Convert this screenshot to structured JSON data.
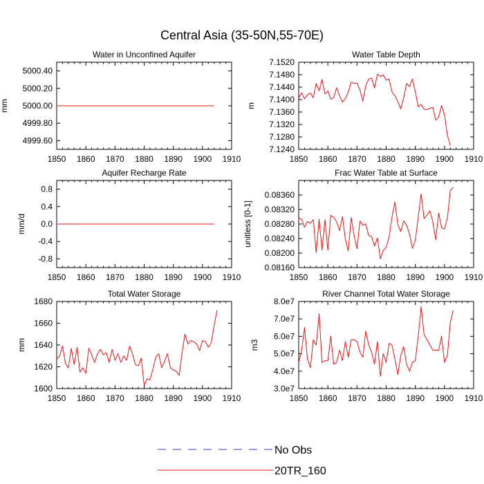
{
  "figure_title": "Central Asia (35-50N,55-70E)",
  "legend": [
    {
      "label": "No Obs",
      "color": "#3333cc",
      "dashed": true
    },
    {
      "label": "20TR_160",
      "color": "#ee1111",
      "dashed": false
    }
  ],
  "chart_data": [
    {
      "type": "line",
      "title": "Water in Unconfined Aquifer",
      "xlabel": "",
      "ylabel": "mm",
      "xlim": [
        1850,
        1910
      ],
      "ylim": [
        4999.5,
        5000.5
      ],
      "xticks": [
        "1850",
        "1860",
        "1870",
        "1880",
        "1890",
        "1900",
        "1910"
      ],
      "yticks": [
        "4999.60",
        "4999.80",
        "5000.00",
        "5000.20",
        "5000.40"
      ],
      "series": [
        {
          "color": "#ee1111",
          "x_start": 1850,
          "x_step": 1,
          "values": [
            5000,
            5000,
            5000,
            5000,
            5000,
            5000,
            5000,
            5000,
            5000,
            5000,
            5000,
            5000,
            5000,
            5000,
            5000,
            5000,
            5000,
            5000,
            5000,
            5000,
            5000,
            5000,
            5000,
            5000,
            5000,
            5000,
            5000,
            5000,
            5000,
            5000,
            5000,
            5000,
            5000,
            5000,
            5000,
            5000,
            5000,
            5000,
            5000,
            5000,
            5000,
            5000,
            5000,
            5000,
            5000,
            5000,
            5000,
            5000,
            5000,
            5000,
            5000,
            5000,
            5000,
            5000,
            5000
          ]
        }
      ]
    },
    {
      "type": "line",
      "title": "Water Table Depth",
      "xlabel": "",
      "ylabel": "m",
      "xlim": [
        1850,
        1910
      ],
      "ylim": [
        7.124,
        7.152
      ],
      "xticks": [
        "1850",
        "1860",
        "1870",
        "1880",
        "1890",
        "1900",
        "1910"
      ],
      "yticks": [
        "7.1240",
        "7.1280",
        "7.1320",
        "7.1360",
        "7.1400",
        "7.1440",
        "7.1480",
        "7.1520"
      ],
      "series": [
        {
          "color": "#ee1111",
          "x_start": 1850,
          "x_step": 1,
          "values": [
            7.1405,
            7.1422,
            7.1402,
            7.1416,
            7.1421,
            7.1406,
            7.1452,
            7.1428,
            7.1465,
            7.1418,
            7.1427,
            7.1401,
            7.1406,
            7.1438,
            7.1413,
            7.1392,
            7.1403,
            7.1424,
            7.1456,
            7.1452,
            7.1453,
            7.1431,
            7.1395,
            7.1445,
            7.1466,
            7.1469,
            7.1437,
            7.1482,
            7.1474,
            7.1479,
            7.1463,
            7.1466,
            7.1424,
            7.1413,
            7.1393,
            7.137,
            7.1405,
            7.1452,
            7.1442,
            7.1466,
            7.1425,
            7.1377,
            7.1384,
            7.1369,
            7.1368,
            7.1372,
            7.1375,
            7.1334,
            7.1344,
            7.1381,
            7.1351,
            7.1285,
            7.1252
          ]
        }
      ]
    },
    {
      "type": "line",
      "title": "Aquifer Recharge Rate",
      "xlabel": "",
      "ylabel": "mm/d",
      "xlim": [
        1850,
        1910
      ],
      "ylim": [
        -1,
        1
      ],
      "xticks": [
        "1850",
        "1860",
        "1870",
        "1880",
        "1890",
        "1900",
        "1910"
      ],
      "yticks": [
        "-0.8",
        "-0.4",
        "0.0",
        "0.4",
        "0.8"
      ],
      "series": [
        {
          "color": "#ee1111",
          "x_start": 1850,
          "x_step": 1,
          "values": [
            0,
            0,
            0,
            0,
            0,
            0,
            0,
            0,
            0,
            0,
            0,
            0,
            0,
            0,
            0,
            0,
            0,
            0,
            0,
            0,
            0,
            0,
            0,
            0,
            0,
            0,
            0,
            0,
            0,
            0,
            0,
            0,
            0,
            0,
            0,
            0,
            0,
            0,
            0,
            0,
            0,
            0,
            0,
            0,
            0,
            0,
            0,
            0,
            0,
            0,
            0,
            0,
            0,
            0,
            0
          ]
        }
      ]
    },
    {
      "type": "line",
      "title": "Frac Water Table at Surface",
      "xlabel": "",
      "ylabel": "unitless [0-1]",
      "xlim": [
        1850,
        1910
      ],
      "ylim": [
        0.0816,
        0.084
      ],
      "xticks": [
        "1850",
        "1860",
        "1870",
        "1880",
        "1890",
        "1900",
        "1910"
      ],
      "yticks": [
        "0.08160",
        "0.08200",
        "0.08240",
        "0.08280",
        "0.08320",
        "0.08360"
      ],
      "series": [
        {
          "color": "#ee1111",
          "x_start": 1850,
          "x_step": 1,
          "values": [
            0.08298,
            0.08293,
            0.08271,
            0.08287,
            0.08282,
            0.08292,
            0.08201,
            0.08293,
            0.08208,
            0.08292,
            0.08208,
            0.08304,
            0.08299,
            0.08286,
            0.08262,
            0.08301,
            0.08238,
            0.08206,
            0.08298,
            0.08248,
            0.08212,
            0.08288,
            0.08277,
            0.0828,
            0.08248,
            0.08246,
            0.08219,
            0.08242,
            0.08184,
            0.08207,
            0.08216,
            0.08244,
            0.08299,
            0.08341,
            0.08278,
            0.08259,
            0.08289,
            0.08277,
            0.08252,
            0.08213,
            0.08235,
            0.08299,
            0.08363,
            0.08295,
            0.08305,
            0.08316,
            0.08286,
            0.08237,
            0.0831,
            0.0827,
            0.08266,
            0.08296,
            0.08373,
            0.08381
          ]
        }
      ]
    },
    {
      "type": "line",
      "title": "Total Water Storage",
      "xlabel": "",
      "ylabel": "mm",
      "xlim": [
        1850,
        1910
      ],
      "ylim": [
        1600,
        1680
      ],
      "xticks": [
        "1850",
        "1860",
        "1870",
        "1880",
        "1890",
        "1900",
        "1910"
      ],
      "yticks": [
        "1600",
        "1620",
        "1640",
        "1660",
        "1680"
      ],
      "series": [
        {
          "color": "#ee1111",
          "x_start": 1850,
          "x_step": 1,
          "values": [
            1627,
            1630,
            1639,
            1623,
            1619,
            1637,
            1622,
            1638,
            1615,
            1619,
            1614,
            1637,
            1631,
            1624,
            1632,
            1636,
            1631,
            1633,
            1624,
            1636,
            1626,
            1632,
            1624,
            1630,
            1626,
            1639,
            1632,
            1622,
            1621,
            1628,
            1603,
            1609,
            1608,
            1618,
            1629,
            1632,
            1619,
            1625,
            1632,
            1619,
            1617,
            1616,
            1612,
            1633,
            1650,
            1641,
            1644,
            1643,
            1641,
            1635,
            1644,
            1643,
            1638,
            1642,
            1658,
            1672
          ]
        }
      ]
    },
    {
      "type": "line",
      "title": "River Channel Total Water Storage",
      "xlabel": "",
      "ylabel": "m3",
      "xlim": [
        1850,
        1910
      ],
      "ylim": [
        30000000,
        80000000
      ],
      "xticks": [
        "1850",
        "1860",
        "1870",
        "1880",
        "1890",
        "1900",
        "1910"
      ],
      "yticks": [
        "3.0e7",
        "4.0e7",
        "5.0e7",
        "6.0e7",
        "7.0e7",
        "8.0e7"
      ],
      "series": [
        {
          "color": "#ee1111",
          "x_start": 1850,
          "x_step": 1,
          "values": [
            45000000,
            52000000,
            65000000,
            47000000,
            42000000,
            58000000,
            55000000,
            73000000,
            45000000,
            46000000,
            46000000,
            60000000,
            44000000,
            45000000,
            52000000,
            46000000,
            57000000,
            48000000,
            58000000,
            58000000,
            57000000,
            51000000,
            48000000,
            63000000,
            55000000,
            51000000,
            44000000,
            57000000,
            37000000,
            50000000,
            45000000,
            56000000,
            55000000,
            47000000,
            38000000,
            49000000,
            54000000,
            44000000,
            40000000,
            45000000,
            46000000,
            60000000,
            77000000,
            61000000,
            58000000,
            55000000,
            52000000,
            52000000,
            52000000,
            60000000,
            45000000,
            49000000,
            68000000,
            75000000
          ]
        }
      ]
    }
  ]
}
